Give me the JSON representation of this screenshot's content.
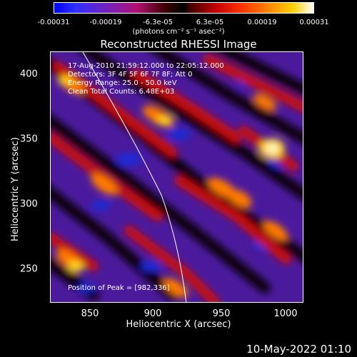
{
  "colorbar": {
    "ticks": [
      "-0.00031",
      "-0.00019",
      "-6.3e-05",
      "6.3e-05",
      "0.00019",
      "0.00031"
    ],
    "units": "(photons cm⁻² s⁻¹ asec⁻²)"
  },
  "title": "Reconstructed RHESSI Image",
  "info": {
    "line1": "17-Aug-2010 21:59:12.000 to 22:05:12.000",
    "line2": "Detectors: 3F 4F 5F 6F 7F 8F; Att 0",
    "line3": "Energy Range: 25.0 - 50.0 keV",
    "line4": "Clean    Total Counts: 6.48E+03",
    "peak": "Position of Peak = [982,336]"
  },
  "axes": {
    "xlabel": "Heliocentric X (arcsec)",
    "ylabel": "Heliocentric Y (arcsec)",
    "xticks": [
      "850",
      "900",
      "950",
      "1000"
    ],
    "yticks": [
      "400",
      "350",
      "300",
      "250"
    ]
  },
  "footer": {
    "date": "10-May-2022 01:10"
  }
}
